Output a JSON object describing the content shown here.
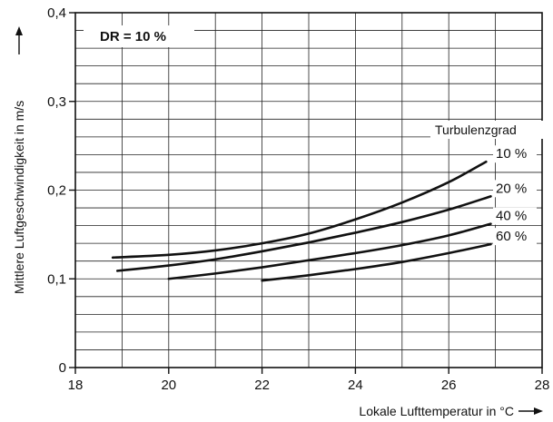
{
  "chart_data": {
    "type": "line",
    "title": "DR = 10 %",
    "xlabel": "Lokale Lufttemperatur in °C",
    "ylabel": "Mittlere Luftgeschwindigkeit in m/s",
    "xlim": [
      18,
      28
    ],
    "ylim": [
      0,
      0.4
    ],
    "x_ticks": [
      "18",
      "20",
      "22",
      "24",
      "26",
      "28"
    ],
    "y_ticks": [
      "0",
      "0,1",
      "0,2",
      "0,3",
      "0,4"
    ],
    "grid": true,
    "legend_title": "Turbulenzgrad",
    "series": [
      {
        "name": "10 %",
        "x": [
          18.8,
          20,
          21,
          22,
          23,
          24,
          25,
          26,
          26.8
        ],
        "y": [
          0.124,
          0.127,
          0.132,
          0.14,
          0.151,
          0.167,
          0.186,
          0.209,
          0.232
        ]
      },
      {
        "name": "20 %",
        "x": [
          18.9,
          20,
          21,
          22,
          23,
          24,
          25,
          26,
          26.9
        ],
        "y": [
          0.109,
          0.115,
          0.122,
          0.131,
          0.141,
          0.152,
          0.164,
          0.178,
          0.193
        ]
      },
      {
        "name": "40 %",
        "x": [
          20,
          21,
          22,
          23,
          24,
          25,
          26,
          26.9
        ],
        "y": [
          0.1,
          0.106,
          0.113,
          0.121,
          0.129,
          0.138,
          0.149,
          0.162
        ]
      },
      {
        "name": "60 %",
        "x": [
          22,
          23,
          24,
          25,
          26,
          26.9
        ],
        "y": [
          0.098,
          0.104,
          0.111,
          0.119,
          0.129,
          0.139
        ]
      }
    ]
  }
}
